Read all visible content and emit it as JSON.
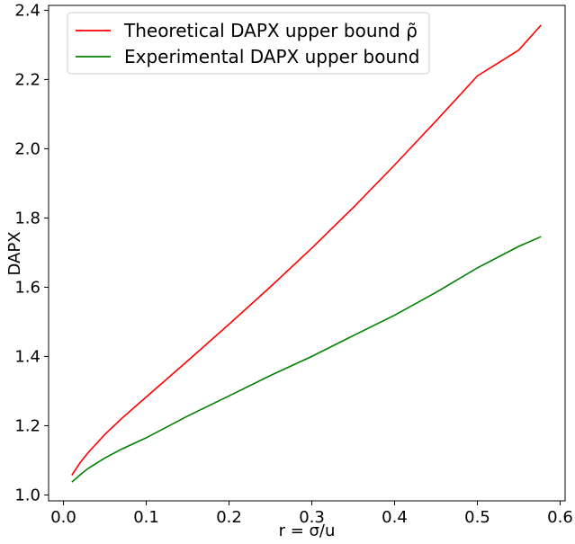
{
  "chart_data": {
    "type": "line",
    "title": "",
    "xlabel": "r = σ/u",
    "ylabel": "DAPX",
    "xlim": [
      -0.018,
      0.606
    ],
    "ylim": [
      0.983,
      2.414
    ],
    "x_ticks": [
      {
        "value": 0.0,
        "label": "0.0"
      },
      {
        "value": 0.1,
        "label": "0.1"
      },
      {
        "value": 0.2,
        "label": "0.2"
      },
      {
        "value": 0.3,
        "label": "0.3"
      },
      {
        "value": 0.4,
        "label": "0.4"
      },
      {
        "value": 0.5,
        "label": "0.5"
      },
      {
        "value": 0.6,
        "label": "0.6"
      }
    ],
    "y_ticks": [
      {
        "value": 1.0,
        "label": "1.0"
      },
      {
        "value": 1.2,
        "label": "1.2"
      },
      {
        "value": 1.4,
        "label": "1.4"
      },
      {
        "value": 1.6,
        "label": "1.6"
      },
      {
        "value": 1.8,
        "label": "1.8"
      },
      {
        "value": 2.0,
        "label": "2.0"
      },
      {
        "value": 2.2,
        "label": "2.2"
      },
      {
        "value": 2.4,
        "label": "2.4"
      }
    ],
    "grid": false,
    "legend_position": "top-left",
    "series": [
      {
        "name": "Theoretical DAPX upper bound ρ̃",
        "color": "#ff0000",
        "x": [
          0.01,
          0.02,
          0.03,
          0.05,
          0.07,
          0.1,
          0.15,
          0.2,
          0.25,
          0.3,
          0.35,
          0.4,
          0.45,
          0.5,
          0.55,
          0.577
        ],
        "y": [
          1.057,
          1.093,
          1.123,
          1.175,
          1.22,
          1.283,
          1.387,
          1.493,
          1.601,
          1.713,
          1.83,
          1.953,
          2.08,
          2.21,
          2.285,
          2.357
        ]
      },
      {
        "name": "Experimental DAPX upper bound",
        "color": "#008000",
        "x": [
          0.01,
          0.02,
          0.03,
          0.05,
          0.07,
          0.1,
          0.15,
          0.2,
          0.25,
          0.3,
          0.35,
          0.4,
          0.45,
          0.5,
          0.55,
          0.577
        ],
        "y": [
          1.037,
          1.058,
          1.077,
          1.107,
          1.132,
          1.165,
          1.228,
          1.286,
          1.345,
          1.4,
          1.46,
          1.519,
          1.585,
          1.656,
          1.718,
          1.746
        ]
      }
    ]
  }
}
